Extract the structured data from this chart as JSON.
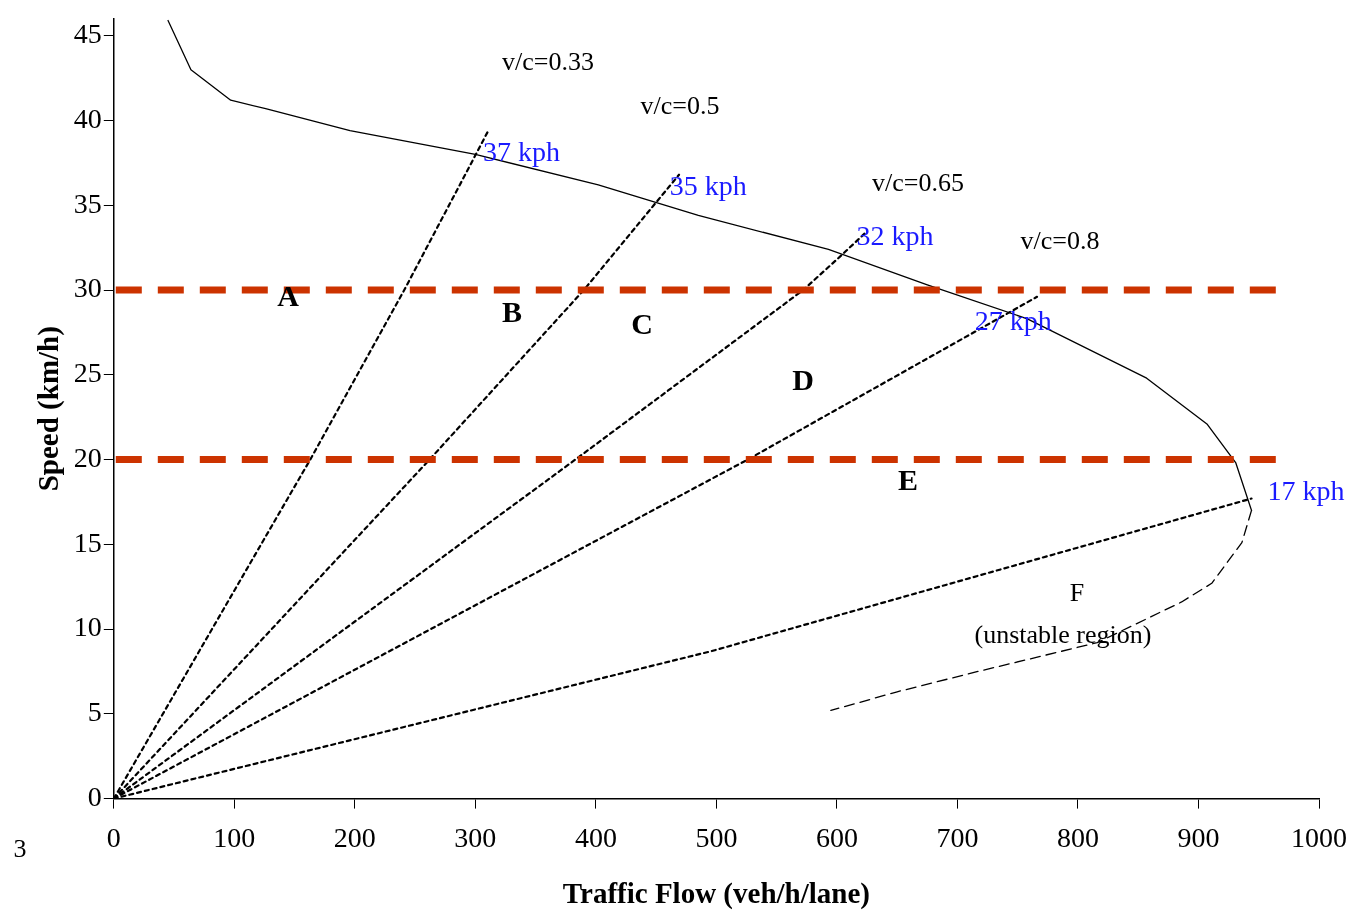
{
  "chart_data": {
    "type": "line",
    "xlabel": "Traffic Flow (veh/h/lane)",
    "ylabel": "Speed (km/h)",
    "xlim": [
      0,
      1000
    ],
    "xticks": [
      0,
      100,
      200,
      300,
      400,
      500,
      600,
      700,
      800,
      900,
      1000
    ],
    "ylim": [
      0,
      46
    ],
    "yticks": [
      0,
      5,
      10,
      15,
      20,
      25,
      30,
      35,
      40,
      45
    ],
    "grid": false,
    "legend": false,
    "marker": "none",
    "series": [
      {
        "line_style": "solid",
        "color": "#000000",
        "x": [
          45,
          64,
          97,
          126,
          196,
          300,
          402,
          485,
          593,
          675,
          758,
          857,
          907,
          931,
          944
        ],
        "values": [
          45.9,
          43,
          41.2,
          40.7,
          39.4,
          38,
          36.2,
          34.4,
          32.4,
          30.3,
          28.3,
          24.8,
          22.1,
          19.8,
          17
        ],
        "value_labels": [
          null,
          null,
          null,
          null,
          null,
          null,
          null,
          null,
          null,
          null,
          null,
          null,
          null,
          null,
          "17 kph"
        ]
      },
      {
        "line_style": "dashed",
        "color": "#000000",
        "x": [
          944,
          936,
          911,
          886,
          816,
          717,
          650,
          595
        ],
        "values": [
          17,
          15.1,
          12.7,
          11.6,
          9.2,
          7.5,
          6.3,
          5.2
        ]
      },
      {
        "line_style": "dotted",
        "color": "#000000",
        "x": [
          0,
          163,
          241,
          293,
          310
        ],
        "values": [
          0,
          20,
          30,
          37,
          39.3
        ],
        "value_labels": [
          null,
          null,
          null,
          "37 kph",
          null
        ]
      },
      {
        "line_style": "dotted",
        "color": "#000000",
        "x": [
          0,
          262,
          390,
          448,
          469
        ],
        "values": [
          0,
          20,
          30,
          35,
          36.8
        ],
        "value_labels": [
          null,
          null,
          null,
          "35 kph",
          null
        ]
      },
      {
        "line_style": "dotted",
        "color": "#000000",
        "x": [
          0,
          383,
          572,
          603,
          624
        ],
        "values": [
          0,
          20,
          30,
          32,
          33.4
        ],
        "value_labels": [
          null,
          null,
          null,
          "32 kph",
          null
        ]
      },
      {
        "line_style": "dotted",
        "color": "#000000",
        "x": [
          0,
          526,
          701,
          766
        ],
        "values": [
          0,
          20,
          27,
          29.6
        ],
        "value_labels": [
          null,
          null,
          "27 kph",
          null
        ]
      },
      {
        "line_style": "dotted",
        "color": "#000000",
        "x": [
          0,
          496,
          944
        ],
        "values": [
          0,
          8.7,
          17.7
        ]
      }
    ],
    "ref_lines": [
      {
        "axis": "y",
        "value": 30,
        "color": "#cc3300",
        "line_style": "dashed"
      },
      {
        "axis": "y",
        "value": 20,
        "color": "#cc3300",
        "line_style": "dashed"
      }
    ],
    "annotations": [
      "v/c=0.33",
      "v/c=0.5",
      "v/c=0.65",
      "v/c=0.8",
      "A",
      "B",
      "C",
      "D",
      "E",
      "F",
      "(unstable region)",
      "3"
    ]
  }
}
